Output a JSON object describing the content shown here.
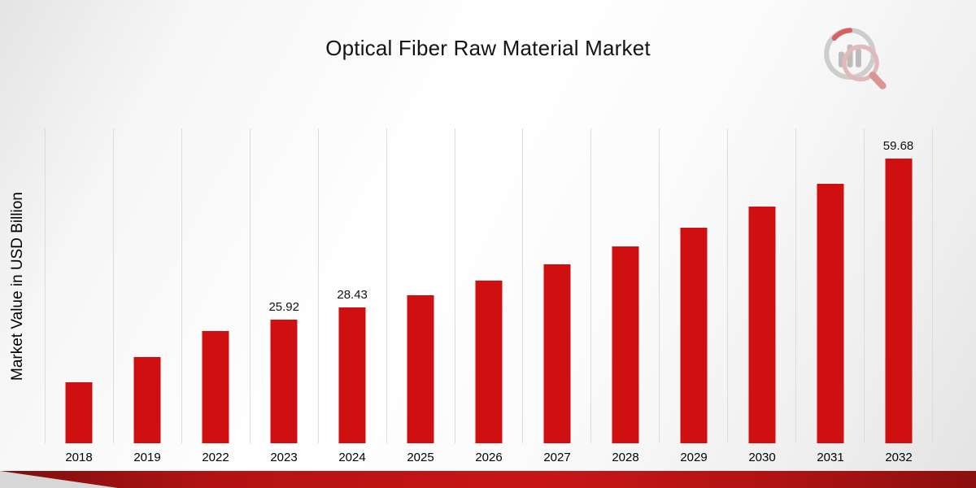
{
  "title": "Optical Fiber Raw Material Market",
  "ylabel": "Market Value in USD Billion",
  "colors": {
    "bar": "#d01010",
    "grid": "#dcdcdc",
    "banner_red_dark": "#7e0f0f",
    "banner_red_bright": "#c81616",
    "background_gray": "#e4e4e4",
    "text": "#141414"
  },
  "logo": {
    "name": "market-research-logo"
  },
  "chart_data": {
    "type": "bar",
    "title": "Optical Fiber Raw Material Market",
    "xlabel": "",
    "ylabel": "Market Value in USD Billion",
    "categories": [
      "2018",
      "2019",
      "2022",
      "2023",
      "2024",
      "2025",
      "2026",
      "2027",
      "2028",
      "2029",
      "2030",
      "2031",
      "2032"
    ],
    "values": [
      12.8,
      18.1,
      23.6,
      25.92,
      28.43,
      31.0,
      34.1,
      37.6,
      41.2,
      45.2,
      49.6,
      54.4,
      59.68
    ],
    "data_labels": {
      "2023": "25.92",
      "2024": "28.43",
      "2032": "59.68"
    },
    "ylim": [
      0,
      66
    ],
    "grid": "vertical-only",
    "legend": "none",
    "bar_color": "#d01010"
  }
}
